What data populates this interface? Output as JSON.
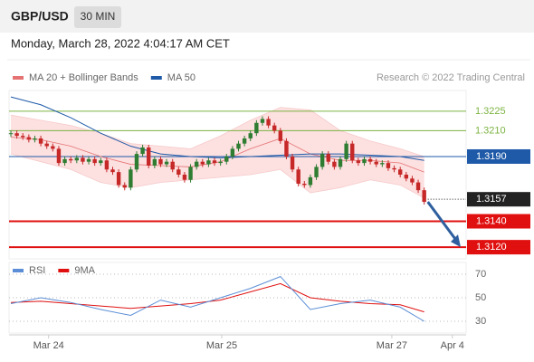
{
  "symbol": "GBP/USD",
  "interval": "30 MIN",
  "timestamp": "Monday, March 28, 2022 4:04:17 AM CET",
  "chart_data": {
    "type": "candlestick",
    "legend": [
      {
        "name": "MA 20 + Bollinger Bands",
        "color": "#e57373"
      },
      {
        "name": "MA 50",
        "color": "#1e5aa8"
      }
    ],
    "credit": "Research © 2022 Trading Central",
    "xlim": [
      0,
      76
    ],
    "xticks": [
      {
        "value": 6.3,
        "label": "Mar 24"
      },
      {
        "value": 35.2,
        "label": "Mar 25"
      },
      {
        "value": 63.6,
        "label": "Mar 27"
      },
      {
        "value": 73.7,
        "label": "Apr 4"
      }
    ],
    "ylim": [
      1.3111,
      1.3241
    ],
    "close": [
      1.3208,
      1.3206,
      1.3205,
      1.3203,
      1.3204,
      1.32,
      1.3198,
      1.3196,
      1.3185,
      1.3188,
      1.3187,
      1.3189,
      1.3186,
      1.3188,
      1.3185,
      1.3187,
      1.318,
      1.3178,
      1.3168,
      1.3166,
      1.318,
      1.3192,
      1.3197,
      1.3183,
      1.3188,
      1.3184,
      1.3186,
      1.318,
      1.3176,
      1.3172,
      1.3182,
      1.3186,
      1.3184,
      1.3187,
      1.3185,
      1.3186,
      1.319,
      1.3196,
      1.32,
      1.3204,
      1.3208,
      1.3216,
      1.3219,
      1.3214,
      1.321,
      1.3202,
      1.319,
      1.318,
      1.3169,
      1.3168,
      1.3174,
      1.3182,
      1.3192,
      1.3186,
      1.3182,
      1.3188,
      1.32,
      1.3187,
      1.3185,
      1.3188,
      1.3186,
      1.3184,
      1.3185,
      1.3181,
      1.318,
      1.3176,
      1.3173,
      1.317,
      1.3164,
      1.3155
    ],
    "up_color": "#2e7d32",
    "down_color": "#c62828",
    "overlay_x": [
      0,
      5,
      10,
      15,
      20,
      25,
      30,
      35,
      40,
      45,
      50,
      55,
      60,
      65,
      69
    ],
    "ma50": [
      1.3236,
      1.323,
      1.322,
      1.3208,
      1.3198,
      1.3192,
      1.319,
      1.3189,
      1.319,
      1.3191,
      1.3192,
      1.3192,
      1.3191,
      1.319,
      1.3187
    ],
    "ma20": [
      1.3205,
      1.3203,
      1.3198,
      1.319,
      1.3184,
      1.3183,
      1.3182,
      1.3186,
      1.3196,
      1.3204,
      1.3192,
      1.3187,
      1.3187,
      1.3185,
      1.3178
    ],
    "band_upper": [
      1.3222,
      1.3218,
      1.3214,
      1.3208,
      1.32,
      1.3198,
      1.3196,
      1.3206,
      1.3218,
      1.3228,
      1.3226,
      1.321,
      1.3202,
      1.3196,
      1.319
    ],
    "band_lower": [
      1.3192,
      1.3186,
      1.318,
      1.317,
      1.3166,
      1.317,
      1.3172,
      1.3174,
      1.3176,
      1.318,
      1.3162,
      1.3166,
      1.3172,
      1.3168,
      1.3158
    ],
    "band_color": "#fde0e0",
    "levels": [
      {
        "value": 1.3225,
        "label": "1.3225",
        "color": "#7cb342",
        "style": "text"
      },
      {
        "value": 1.321,
        "label": "1.3210",
        "color": "#7cb342",
        "style": "text"
      },
      {
        "value": 1.319,
        "label": "1.3190",
        "color": "#1e5aa8",
        "style": "box"
      },
      {
        "value": 1.3157,
        "label": "1.3157",
        "color": "#222222",
        "style": "dotted"
      },
      {
        "value": 1.314,
        "label": "1.3140",
        "color": "#e01010",
        "style": "box"
      },
      {
        "value": 1.312,
        "label": "1.3120",
        "color": "#e01010",
        "style": "box"
      }
    ],
    "target": 1.312,
    "rsi": {
      "legend": [
        {
          "name": "RSI",
          "color": "#5b8ed6"
        },
        {
          "name": "9MA",
          "color": "#e01010"
        }
      ],
      "ylim": [
        20,
        80
      ],
      "yticks": [
        70,
        50,
        30
      ],
      "rsi": [
        45,
        50,
        46,
        40,
        35,
        48,
        42,
        50,
        58,
        68,
        40,
        45,
        48,
        42,
        30
      ],
      "ma9": [
        46,
        47,
        45,
        43,
        41,
        43,
        45,
        48,
        55,
        62,
        50,
        47,
        45,
        44,
        38
      ]
    }
  }
}
